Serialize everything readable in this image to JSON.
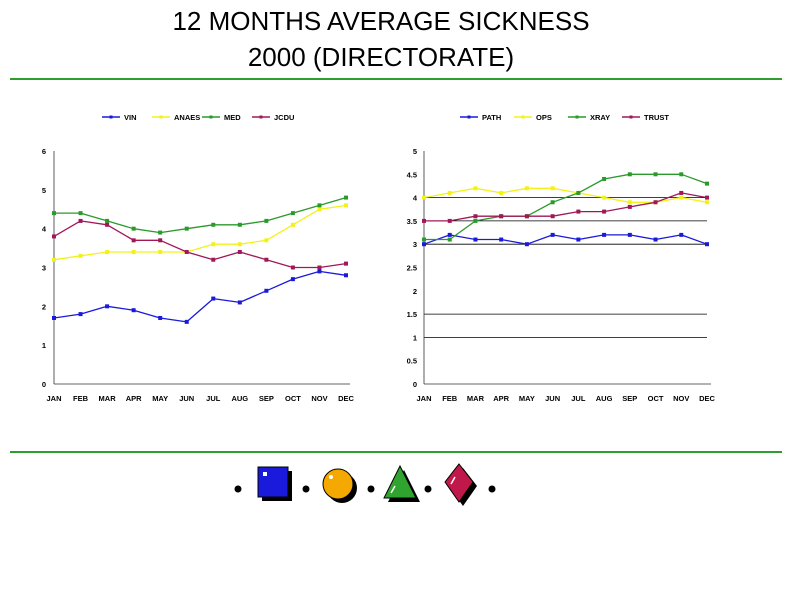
{
  "page": {
    "title_line1": "12 MONTHS AVERAGE SICKNESS",
    "title_line2": "2000 (DIRECTORATE)",
    "rule_color": "#2f9e2f"
  },
  "chart_data": [
    {
      "type": "line",
      "title": "",
      "xlabel": "",
      "ylabel": "",
      "categories": [
        "JAN",
        "FEB",
        "MAR",
        "APR",
        "MAY",
        "JUN",
        "JUL",
        "AUG",
        "SEP",
        "OCT",
        "NOV",
        "DEC"
      ],
      "ylim": [
        0,
        6
      ],
      "yticks": [
        0,
        1,
        2,
        3,
        4,
        5,
        6
      ],
      "ytick_labels": [
        "0",
        "1",
        "2",
        "3",
        "4",
        "5",
        "6"
      ],
      "gridlines": [],
      "legend_position": "top",
      "series": [
        {
          "name": "VIN",
          "color": "#1a1adc",
          "values": [
            1.7,
            1.8,
            2.0,
            1.9,
            1.7,
            1.6,
            2.2,
            2.1,
            2.4,
            2.7,
            2.9,
            2.8
          ]
        },
        {
          "name": "ANAES",
          "color": "#f2f21a",
          "values": [
            3.2,
            3.3,
            3.4,
            3.4,
            3.4,
            3.4,
            3.6,
            3.6,
            3.7,
            4.1,
            4.5,
            4.6
          ]
        },
        {
          "name": "MED",
          "color": "#2a9a2a",
          "values": [
            4.4,
            4.4,
            4.2,
            4.0,
            3.9,
            4.0,
            4.1,
            4.1,
            4.2,
            4.4,
            4.6,
            4.8
          ]
        },
        {
          "name": "JCDU",
          "color": "#a01858",
          "values": [
            3.8,
            4.2,
            4.1,
            3.7,
            3.7,
            3.4,
            3.2,
            3.4,
            3.2,
            3.0,
            3.0,
            3.1
          ]
        }
      ]
    },
    {
      "type": "line",
      "title": "",
      "xlabel": "",
      "ylabel": "",
      "categories": [
        "JAN",
        "FEB",
        "MAR",
        "APR",
        "MAY",
        "JUN",
        "JUL",
        "AUG",
        "SEP",
        "OCT",
        "NOV",
        "DEC"
      ],
      "ylim": [
        0,
        5
      ],
      "yticks": [
        0,
        0.5,
        1,
        1.5,
        2,
        2.5,
        3,
        3.5,
        4,
        4.5,
        5
      ],
      "ytick_labels": [
        "0",
        "0.5",
        "1",
        "1.5",
        "2",
        "2.5",
        "3",
        "3.5",
        "4",
        "4.5",
        "5"
      ],
      "gridlines": [
        1,
        1.5,
        3,
        3.5,
        4
      ],
      "legend_position": "top",
      "series": [
        {
          "name": "PATH",
          "color": "#1a1adc",
          "values": [
            3.0,
            3.2,
            3.1,
            3.1,
            3.0,
            3.2,
            3.1,
            3.2,
            3.2,
            3.1,
            3.2,
            3.0
          ]
        },
        {
          "name": "OPS",
          "color": "#f2f21a",
          "values": [
            4.0,
            4.1,
            4.2,
            4.1,
            4.2,
            4.2,
            4.1,
            4.0,
            3.9,
            3.9,
            4.0,
            3.9
          ]
        },
        {
          "name": "XRAY",
          "color": "#2a9a2a",
          "values": [
            3.1,
            3.1,
            3.5,
            3.6,
            3.6,
            3.9,
            4.1,
            4.4,
            4.5,
            4.5,
            4.5,
            4.3
          ]
        },
        {
          "name": "TRUST",
          "color": "#a01858",
          "values": [
            3.5,
            3.5,
            3.6,
            3.6,
            3.6,
            3.6,
            3.7,
            3.7,
            3.8,
            3.9,
            4.1,
            4.0
          ]
        }
      ]
    }
  ],
  "decoration": {
    "shapes": [
      "square-icon",
      "circle-icon",
      "triangle-icon",
      "diamond-icon"
    ],
    "colors": {
      "square": "#1a1adc",
      "circle": "#f5a800",
      "triangle": "#2fa52f",
      "diamond": "#c0184a"
    }
  }
}
